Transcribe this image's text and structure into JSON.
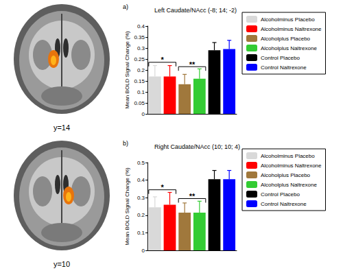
{
  "brain_slices": [
    {
      "caption": "y=14"
    },
    {
      "caption": "y=10"
    }
  ],
  "chart_data": [
    {
      "type": "bar",
      "title": "Left Caudate/NAcc (-8; 14; -2)",
      "ylabel": "Mean BOLD Signal Change (%)",
      "categories": [
        null,
        null,
        null,
        null,
        null,
        null
      ],
      "ylim": [
        0,
        0.4
      ],
      "yticks": [
        0,
        0.05,
        0.1,
        0.15,
        0.2,
        0.25,
        0.3,
        0.35,
        0.4
      ],
      "grid": false,
      "legend": "right",
      "series": [
        {
          "name": "Alcoholminus Placebo",
          "color": "#d9d9d9",
          "values": [
            0.17,
            null,
            null,
            null,
            null,
            null
          ],
          "errors": [
            0.05,
            null,
            null,
            null,
            null,
            null
          ]
        },
        {
          "name": "Alcoholminus Naltrexone",
          "color": "#ff0000",
          "values": [
            null,
            0.17,
            null,
            null,
            null,
            null
          ],
          "errors": [
            null,
            0.05,
            null,
            null,
            null,
            null
          ]
        },
        {
          "name": "Alcoholplus Placebo",
          "color": "#a0783c",
          "values": [
            null,
            null,
            0.135,
            null,
            null,
            null
          ],
          "errors": [
            null,
            null,
            0.045,
            null,
            null,
            null
          ]
        },
        {
          "name": "Alcoholplus Naltrexone",
          "color": "#33cc33",
          "values": [
            null,
            null,
            null,
            0.16,
            null,
            null
          ],
          "errors": [
            null,
            null,
            null,
            0.045,
            null,
            null
          ]
        },
        {
          "name": "Control Placebo",
          "color": "#000000",
          "values": [
            null,
            null,
            null,
            null,
            0.29,
            null
          ],
          "errors": [
            null,
            null,
            null,
            null,
            0.035,
            null
          ]
        },
        {
          "name": "Control Naltrexone",
          "color": "#0000ff",
          "values": [
            null,
            null,
            null,
            null,
            null,
            0.295
          ],
          "errors": [
            null,
            null,
            null,
            null,
            null,
            0.04
          ]
        }
      ],
      "annotations": [
        {
          "text": "a)"
        },
        {
          "text": "*",
          "from": 0,
          "to": 1,
          "y": 0.235
        },
        {
          "text": "**",
          "from": 2,
          "to": 3,
          "y": 0.215
        }
      ]
    },
    {
      "type": "bar",
      "title": "Right Caudate/NAcc (10; 10; 4)",
      "ylabel": "Mean BOLD Signal Change (%)",
      "categories": [
        null,
        null,
        null,
        null,
        null,
        null
      ],
      "ylim": [
        0,
        0.5
      ],
      "yticks": [
        0,
        0.1,
        0.2,
        0.3,
        0.4,
        0.5
      ],
      "grid": false,
      "legend": "right",
      "series": [
        {
          "name": "Alcoholminus Placebo",
          "color": "#d9d9d9",
          "values": [
            0.245,
            null,
            null,
            null,
            null,
            null
          ],
          "errors": [
            0.06,
            null,
            null,
            null,
            null,
            null
          ]
        },
        {
          "name": "Alcoholminus Naltrexone",
          "color": "#ff0000",
          "values": [
            null,
            0.26,
            null,
            null,
            null,
            null
          ],
          "errors": [
            null,
            0.07,
            null,
            null,
            null,
            null
          ]
        },
        {
          "name": "Alcoholplus Placebo",
          "color": "#a0783c",
          "values": [
            null,
            null,
            0.215,
            null,
            null,
            null
          ],
          "errors": [
            null,
            null,
            0.055,
            null,
            null,
            null
          ]
        },
        {
          "name": "Alcoholplus Naltrexone",
          "color": "#33cc33",
          "values": [
            null,
            null,
            null,
            0.215,
            null,
            null
          ],
          "errors": [
            null,
            null,
            null,
            0.065,
            null,
            null
          ]
        },
        {
          "name": "Control Placebo",
          "color": "#000000",
          "values": [
            null,
            null,
            null,
            null,
            0.405,
            null
          ],
          "errors": [
            null,
            null,
            null,
            null,
            0.05,
            null
          ]
        },
        {
          "name": "Control Naltrexone",
          "color": "#0000ff",
          "values": [
            null,
            null,
            null,
            null,
            null,
            0.405
          ],
          "errors": [
            null,
            null,
            null,
            null,
            null,
            0.05
          ]
        }
      ],
      "annotations": [
        {
          "text": "b)"
        },
        {
          "text": "*",
          "from": 0,
          "to": 1,
          "y": 0.345
        },
        {
          "text": "**",
          "from": 2,
          "to": 3,
          "y": 0.295
        }
      ]
    }
  ]
}
